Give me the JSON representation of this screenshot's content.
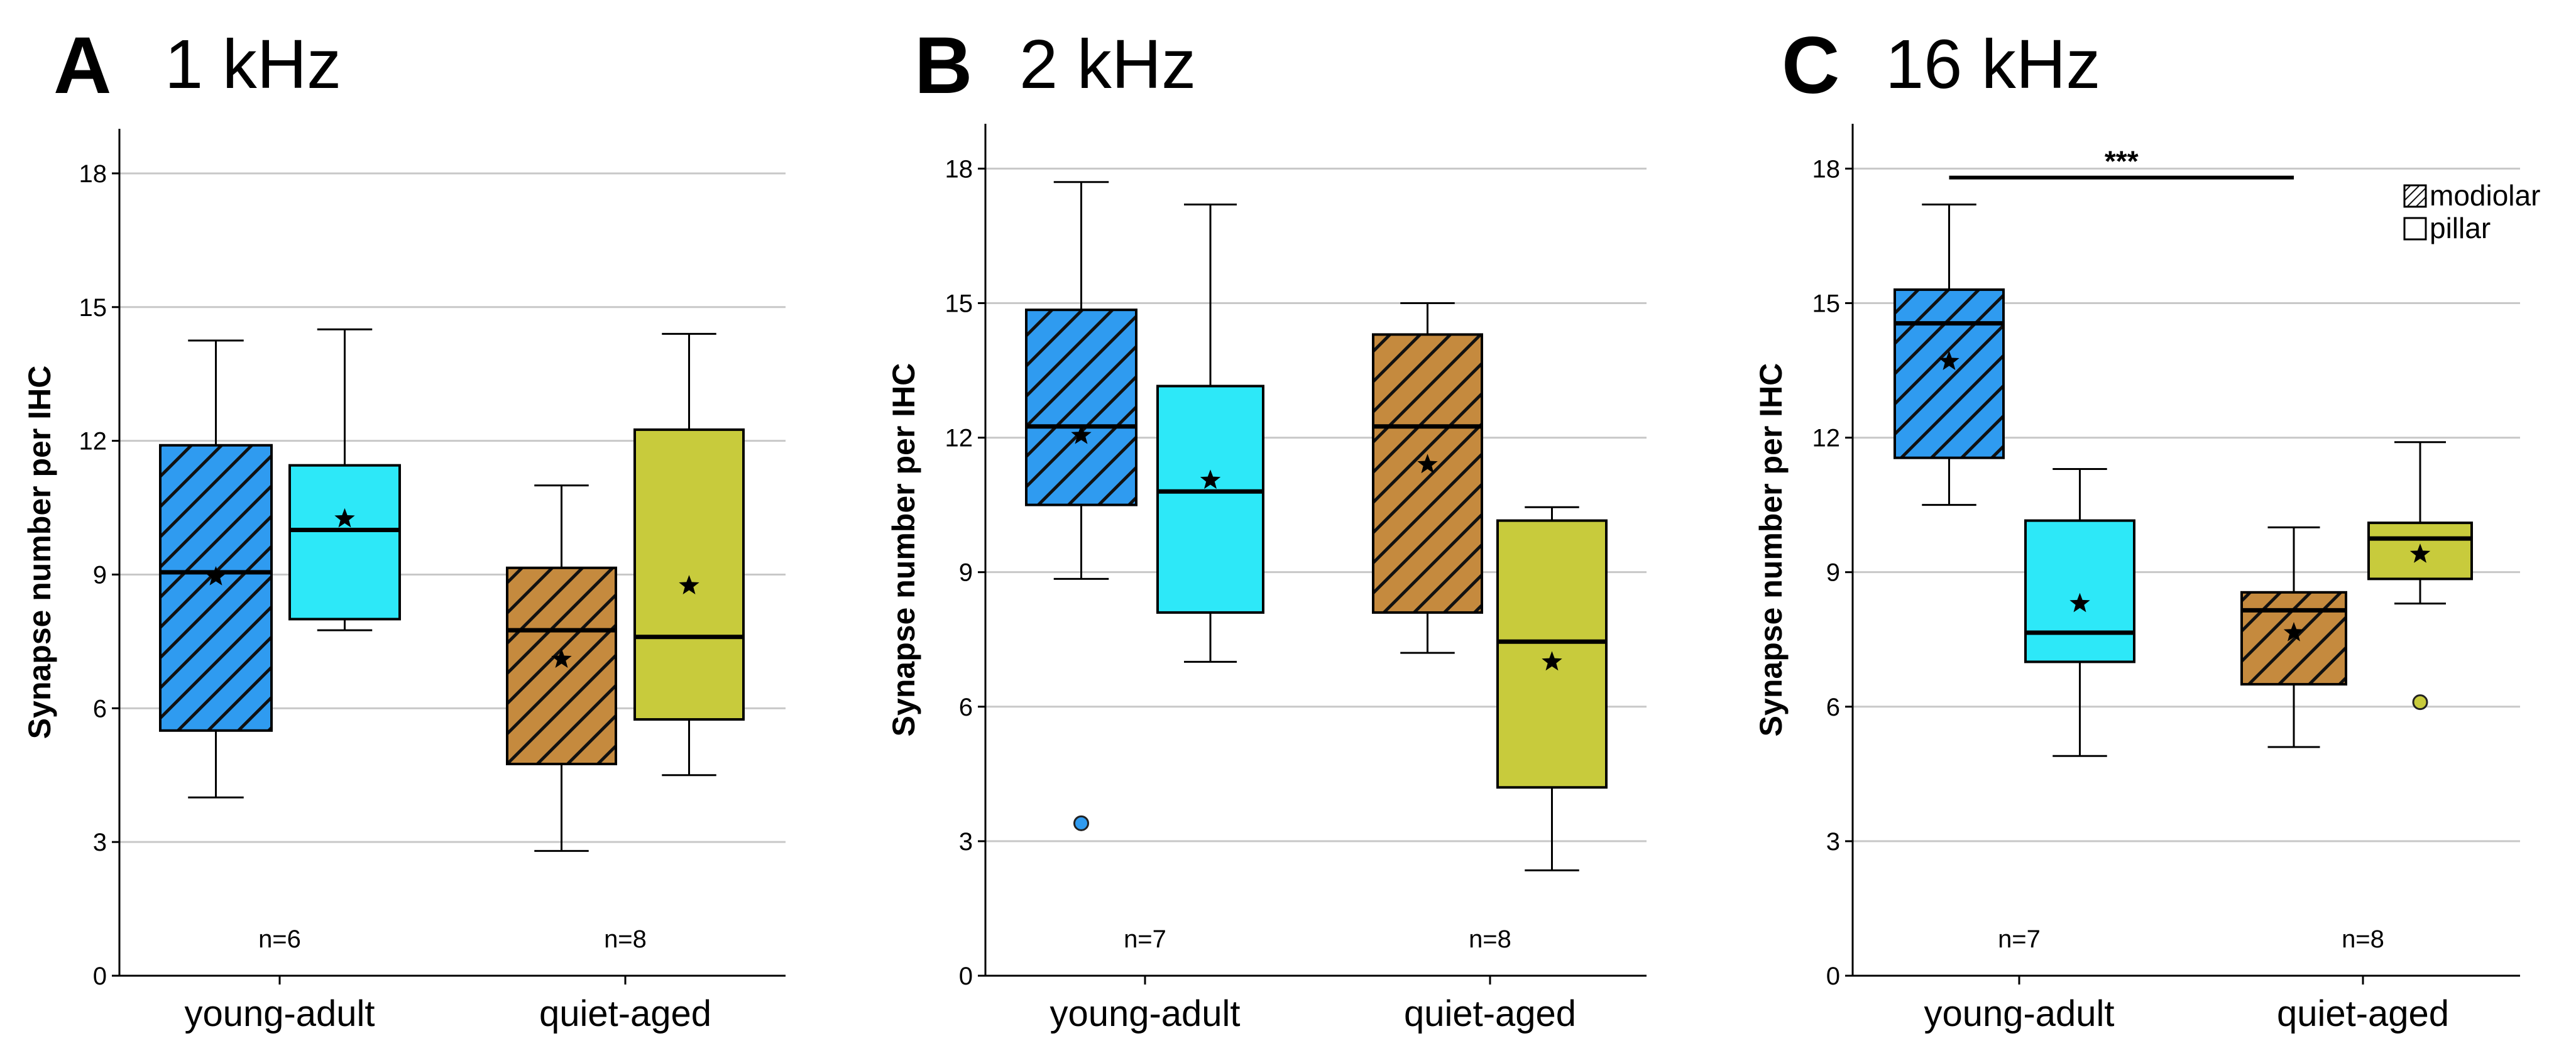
{
  "figure": {
    "legend": [
      {
        "label": "modiolar",
        "pattern": "hatched"
      },
      {
        "label": "pillar",
        "pattern": "open"
      }
    ]
  },
  "colors": {
    "young_modiolar": "#2f9bf0",
    "young_pillar": "#2de8f8",
    "aged_modiolar": "#c58a3e",
    "aged_pillar": "#c8cb3c",
    "gridline": "#c8c8c8"
  },
  "chart_data": [
    {
      "type": "box",
      "panel_letter": "A",
      "title": "1 kHz",
      "ylabel": "Synapse number per IHC",
      "ylim": [
        0,
        19
      ],
      "yticks": [
        0,
        3,
        6,
        9,
        12,
        15,
        18
      ],
      "grid": true,
      "categories": [
        "young-adult",
        "quiet-aged"
      ],
      "n_labels": [
        "n=6",
        "n=8"
      ],
      "series": [
        {
          "group": "young-adult",
          "kind": "modiolar",
          "whisker_low": 4.0,
          "q1": 5.5,
          "median": 9.05,
          "q3": 11.9,
          "whisker_high": 14.25,
          "mean": 8.95,
          "outliers": []
        },
        {
          "group": "young-adult",
          "kind": "pillar",
          "whisker_low": 7.75,
          "q1": 8.0,
          "median": 10.0,
          "q3": 11.45,
          "whisker_high": 14.5,
          "mean": 10.25,
          "outliers": []
        },
        {
          "group": "quiet-aged",
          "kind": "modiolar",
          "whisker_low": 2.8,
          "q1": 4.75,
          "median": 7.75,
          "q3": 9.15,
          "whisker_high": 11.0,
          "mean": 7.1,
          "outliers": []
        },
        {
          "group": "quiet-aged",
          "kind": "pillar",
          "whisker_low": 4.5,
          "q1": 5.75,
          "median": 7.6,
          "q3": 12.25,
          "whisker_high": 14.4,
          "mean": 8.75,
          "outliers": []
        }
      ],
      "significance": []
    },
    {
      "type": "box",
      "panel_letter": "B",
      "title": "2 kHz",
      "ylabel": "Synapse number per IHC",
      "ylim": [
        0,
        19
      ],
      "yticks": [
        0,
        3,
        6,
        9,
        12,
        15,
        18
      ],
      "grid": true,
      "categories": [
        "young-adult",
        "quiet-aged"
      ],
      "n_labels": [
        "n=7",
        "n=8"
      ],
      "series": [
        {
          "group": "young-adult",
          "kind": "modiolar",
          "whisker_low": 8.85,
          "q1": 10.5,
          "median": 12.25,
          "q3": 14.85,
          "whisker_high": 17.7,
          "mean": 12.05,
          "outliers": [
            3.4
          ]
        },
        {
          "group": "young-adult",
          "kind": "pillar",
          "whisker_low": 7.0,
          "q1": 8.1,
          "median": 10.8,
          "q3": 13.15,
          "whisker_high": 17.2,
          "mean": 11.05,
          "outliers": []
        },
        {
          "group": "quiet-aged",
          "kind": "modiolar",
          "whisker_low": 7.2,
          "q1": 8.1,
          "median": 12.25,
          "q3": 14.3,
          "whisker_high": 15.0,
          "mean": 11.4,
          "outliers": []
        },
        {
          "group": "quiet-aged",
          "kind": "pillar",
          "whisker_low": 2.35,
          "q1": 4.2,
          "median": 7.45,
          "q3": 10.15,
          "whisker_high": 10.45,
          "mean": 7.0,
          "outliers": []
        }
      ],
      "significance": []
    },
    {
      "type": "box",
      "panel_letter": "C",
      "title": "16 kHz",
      "ylabel": "Synapse number per IHC",
      "ylim": [
        0,
        19
      ],
      "yticks": [
        0,
        3,
        6,
        9,
        12,
        15,
        18
      ],
      "grid": true,
      "categories": [
        "young-adult",
        "quiet-aged"
      ],
      "n_labels": [
        "n=7",
        "n=8"
      ],
      "series": [
        {
          "group": "young-adult",
          "kind": "modiolar",
          "whisker_low": 10.5,
          "q1": 11.55,
          "median": 14.55,
          "q3": 15.3,
          "whisker_high": 17.2,
          "mean": 13.7,
          "outliers": []
        },
        {
          "group": "young-adult",
          "kind": "pillar",
          "whisker_low": 4.9,
          "q1": 7.0,
          "median": 7.65,
          "q3": 10.15,
          "whisker_high": 11.3,
          "mean": 8.3,
          "outliers": []
        },
        {
          "group": "quiet-aged",
          "kind": "modiolar",
          "whisker_low": 5.1,
          "q1": 6.5,
          "median": 8.15,
          "q3": 8.55,
          "whisker_high": 10.0,
          "mean": 7.65,
          "outliers": []
        },
        {
          "group": "quiet-aged",
          "kind": "pillar",
          "whisker_low": 8.3,
          "q1": 8.85,
          "median": 9.75,
          "q3": 10.1,
          "whisker_high": 11.9,
          "mean": 9.4,
          "outliers": [
            6.1
          ]
        }
      ],
      "significance": [
        {
          "from_box": 0,
          "to_box": 2,
          "label": "***",
          "y": 17.8
        }
      ]
    }
  ]
}
